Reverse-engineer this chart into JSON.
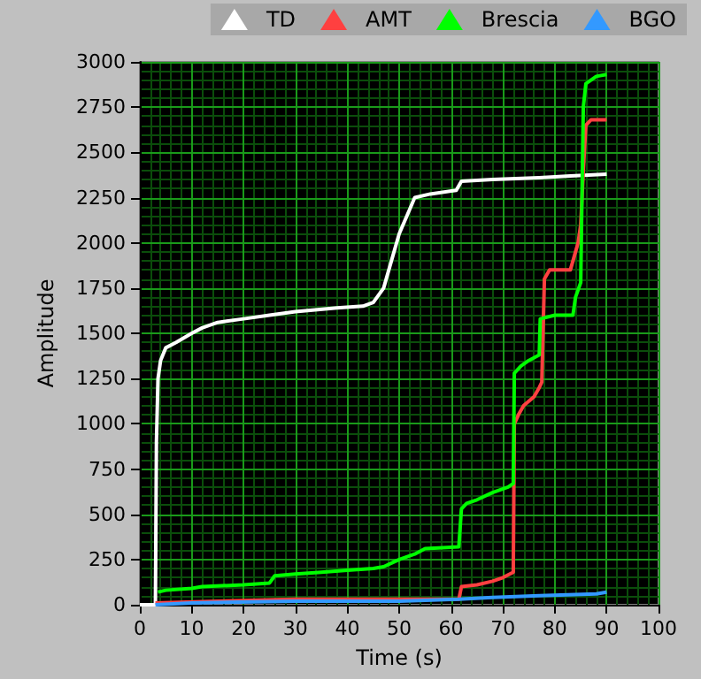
{
  "chart_data": {
    "type": "line",
    "xlabel": "Time (s)",
    "ylabel": "Amplitude",
    "xlim": [
      0,
      100
    ],
    "xticks": [
      0,
      {
        "value": 2,
        "label": null
      },
      {
        "value": 4,
        "label": null
      },
      {
        "value": 6,
        "label": null
      },
      {
        "value": 8,
        "label": null
      },
      10,
      {
        "value": 12,
        "label": null
      },
      {
        "value": 14,
        "label": null
      },
      {
        "value": 16,
        "label": null
      },
      {
        "value": 18,
        "label": null
      },
      20,
      {
        "value": 22,
        "label": null
      },
      {
        "value": 24,
        "label": null
      },
      {
        "value": 26,
        "label": null
      },
      {
        "value": 28,
        "label": null
      },
      30,
      {
        "value": 32,
        "label": null
      },
      {
        "value": 34,
        "label": null
      },
      {
        "value": 36,
        "label": null
      },
      {
        "value": 38,
        "label": null
      },
      40,
      {
        "value": 42,
        "label": null
      },
      {
        "value": 44,
        "label": null
      },
      {
        "value": 46,
        "label": null
      },
      {
        "value": 48,
        "label": null
      },
      50,
      {
        "value": 52,
        "label": null
      },
      {
        "value": 54,
        "label": null
      },
      {
        "value": 56,
        "label": null
      },
      {
        "value": 58,
        "label": null
      },
      60,
      {
        "value": 62,
        "label": null
      },
      {
        "value": 64,
        "label": null
      },
      {
        "value": 66,
        "label": null
      },
      {
        "value": 68,
        "label": null
      },
      70,
      {
        "value": 72,
        "label": null
      },
      {
        "value": 74,
        "label": null
      },
      {
        "value": 76,
        "label": null
      },
      {
        "value": 78,
        "label": null
      },
      80,
      {
        "value": 82,
        "label": null
      },
      {
        "value": 84,
        "label": null
      },
      {
        "value": 86,
        "label": null
      },
      {
        "value": 88,
        "label": null
      },
      90,
      {
        "value": 92,
        "label": null
      },
      {
        "value": 94,
        "label": null
      },
      {
        "value": 96,
        "label": null
      },
      {
        "value": 98,
        "label": null
      },
      100
    ],
    "ylim": [
      0,
      3000
    ],
    "yticks": [
      0,
      {
        "value": 50,
        "label": null
      },
      {
        "value": 100,
        "label": null
      },
      {
        "value": 150,
        "label": null
      },
      {
        "value": 200,
        "label": null
      },
      250,
      {
        "value": 300,
        "label": null
      },
      {
        "value": 350,
        "label": null
      },
      {
        "value": 400,
        "label": null
      },
      {
        "value": 450,
        "label": null
      },
      500,
      {
        "value": 550,
        "label": null
      },
      {
        "value": 600,
        "label": null
      },
      {
        "value": 650,
        "label": null
      },
      {
        "value": 700,
        "label": null
      },
      750,
      {
        "value": 800,
        "label": null
      },
      {
        "value": 850,
        "label": null
      },
      {
        "value": 900,
        "label": null
      },
      {
        "value": 950,
        "label": null
      },
      1000,
      {
        "value": 1050,
        "label": null
      },
      {
        "value": 1100,
        "label": null
      },
      {
        "value": 1150,
        "label": null
      },
      {
        "value": 1200,
        "label": null
      },
      1250,
      {
        "value": 1300,
        "label": null
      },
      {
        "value": 1350,
        "label": null
      },
      {
        "value": 1400,
        "label": null
      },
      {
        "value": 1450,
        "label": null
      },
      1500,
      {
        "value": 1550,
        "label": null
      },
      {
        "value": 1600,
        "label": null
      },
      {
        "value": 1650,
        "label": null
      },
      {
        "value": 1700,
        "label": null
      },
      1750,
      {
        "value": 1800,
        "label": null
      },
      {
        "value": 1850,
        "label": null
      },
      {
        "value": 1900,
        "label": null
      },
      {
        "value": 1950,
        "label": null
      },
      2000,
      {
        "value": 2050,
        "label": null
      },
      {
        "value": 2100,
        "label": null
      },
      {
        "value": 2150,
        "label": null
      },
      {
        "value": 2200,
        "label": null
      },
      2250,
      {
        "value": 2300,
        "label": null
      },
      {
        "value": 2350,
        "label": null
      },
      {
        "value": 2400,
        "label": null
      },
      {
        "value": 2450,
        "label": null
      },
      2500,
      {
        "value": 2550,
        "label": null
      },
      {
        "value": 2600,
        "label": null
      },
      {
        "value": 2650,
        "label": null
      },
      {
        "value": 2700,
        "label": null
      },
      2750,
      {
        "value": 2800,
        "label": null
      },
      {
        "value": 2850,
        "label": null
      },
      {
        "value": 2900,
        "label": null
      },
      {
        "value": 2950,
        "label": null
      },
      3000
    ],
    "grid": true,
    "legend": "top right",
    "marker": "none",
    "line_style": "solid",
    "series": [
      {
        "name": "TD",
        "color": "#ffffff",
        "x": [
          0,
          3,
          3.2,
          3.5,
          4,
          5,
          7,
          10,
          12,
          15,
          20,
          25,
          30,
          38,
          43,
          45,
          47,
          48.5,
          50,
          51.5,
          53,
          56,
          61,
          62,
          68,
          77,
          83,
          90
        ],
        "values": [
          0,
          0,
          900,
          1250,
          1350,
          1420,
          1450,
          1500,
          1530,
          1560,
          1580,
          1600,
          1620,
          1640,
          1650,
          1670,
          1750,
          1900,
          2050,
          2150,
          2250,
          2270,
          2290,
          2340,
          2350,
          2360,
          2370,
          2380
        ]
      },
      {
        "name": "AMT",
        "color": "#ff4040",
        "x": [
          3,
          15,
          30,
          48,
          61.5,
          62,
          65,
          68,
          70,
          72,
          72.2,
          73,
          74,
          76,
          77,
          77.5,
          78,
          79,
          83,
          83.5,
          84.5,
          85,
          85.5,
          86,
          87,
          90
        ],
        "values": [
          10,
          20,
          30,
          30,
          30,
          100,
          110,
          130,
          150,
          180,
          1000,
          1050,
          1100,
          1150,
          1200,
          1230,
          1800,
          1850,
          1850,
          1900,
          2000,
          2100,
          2400,
          2650,
          2680,
          2680
        ]
      },
      {
        "name": "Brescia",
        "color": "#00ff00",
        "x": [
          3.5,
          5,
          10,
          12,
          20,
          25,
          26,
          30,
          35,
          40,
          45,
          47,
          50,
          53,
          55,
          61.5,
          62,
          63,
          65,
          68,
          71,
          72,
          72.2,
          73.5,
          75,
          77,
          77.2,
          80,
          83.5,
          84,
          85,
          85.5,
          86,
          88,
          90
        ],
        "values": [
          70,
          80,
          90,
          100,
          110,
          120,
          160,
          170,
          180,
          190,
          200,
          210,
          250,
          280,
          310,
          320,
          530,
          560,
          580,
          620,
          650,
          670,
          1280,
          1320,
          1350,
          1380,
          1580,
          1600,
          1600,
          1700,
          1780,
          2750,
          2880,
          2920,
          2930
        ]
      },
      {
        "name": "BGO",
        "color": "#3399ff",
        "x": [
          3,
          10,
          30,
          50,
          61.5,
          68,
          77,
          88,
          90
        ],
        "values": [
          0,
          10,
          20,
          20,
          30,
          40,
          50,
          60,
          70
        ]
      }
    ]
  }
}
